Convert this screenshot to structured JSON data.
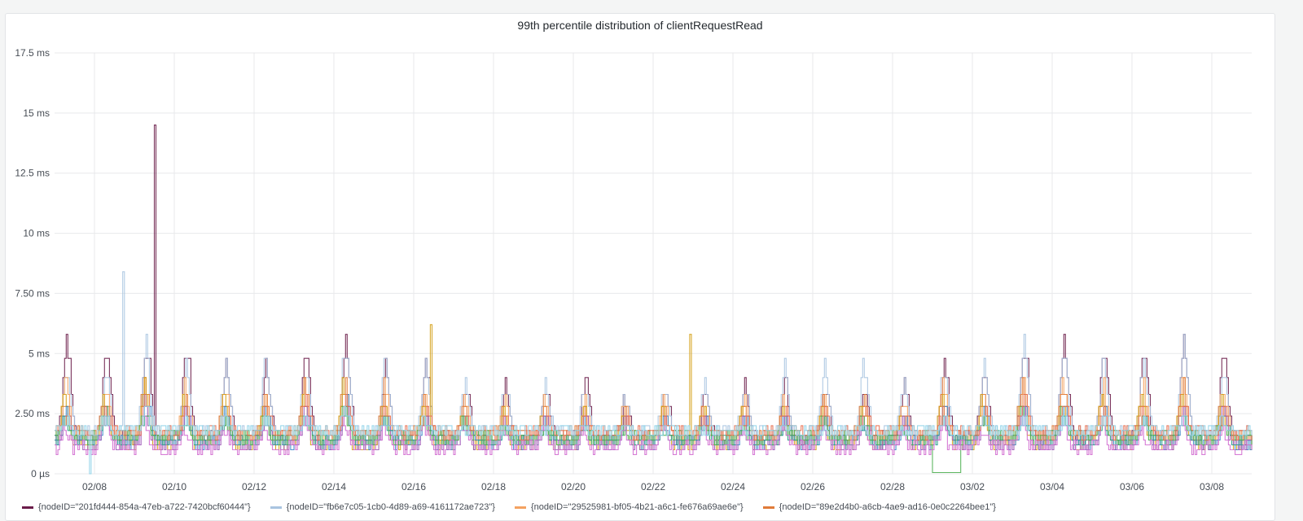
{
  "panel": {
    "title": "99th percentile distribution of clientRequestRead"
  },
  "chart_data": {
    "type": "line",
    "title": "99th percentile distribution of clientRequestRead",
    "xlabel": "",
    "ylabel": "",
    "x_range": [
      "02/07",
      "03/09"
    ],
    "x_ticks": [
      "02/08",
      "02/10",
      "02/12",
      "02/14",
      "02/16",
      "02/18",
      "02/20",
      "02/22",
      "02/24",
      "02/26",
      "02/28",
      "03/02",
      "03/04",
      "03/06",
      "03/08"
    ],
    "y_unit": "ms",
    "ylim": [
      0,
      17.5
    ],
    "y_ticks": [
      {
        "value": 0,
        "label": "0 µs"
      },
      {
        "value": 2.5,
        "label": "2.50 ms"
      },
      {
        "value": 5,
        "label": "5 ms"
      },
      {
        "value": 7.5,
        "label": "7.50 ms"
      },
      {
        "value": 10,
        "label": "10 ms"
      },
      {
        "value": 12.5,
        "label": "12.5 ms"
      },
      {
        "value": 15,
        "label": "15 ms"
      },
      {
        "value": 17.5,
        "label": "17.5 ms"
      }
    ],
    "grid": true,
    "legend_position": "bottom",
    "series": [
      {
        "color": "#6b1d4a",
        "base": 1.6,
        "peaks": [
          5.8,
          5.8,
          5.8,
          5.8,
          4.8,
          4.8,
          5.8,
          5.8,
          4.8,
          4.8,
          4.0,
          4.0,
          4.0,
          4.0,
          3.3,
          4.0,
          4.0,
          4.0,
          4.0,
          4.0,
          4.0,
          4.0,
          4.8,
          4.8,
          5.8,
          5.8,
          5.8,
          5.8,
          5.8,
          5.8
        ]
      },
      {
        "color": "#a9c4e0",
        "base": 1.8,
        "peaks": [
          4.8,
          4.8,
          5.8,
          4.8,
          4.8,
          4.8,
          4.8,
          5.8,
          4.8,
          4.8,
          4.0,
          4.0,
          4.0,
          4.0,
          3.3,
          4.0,
          4.0,
          4.0,
          4.8,
          4.8,
          4.8,
          4.0,
          4.8,
          4.8,
          5.8,
          5.8,
          4.8,
          4.8,
          5.8,
          4.8
        ]
      },
      {
        "color": "#f4a261",
        "base": 1.5,
        "peaks": [
          4.0,
          4.0,
          4.0,
          4.0,
          4.0,
          3.3,
          4.0,
          4.0,
          4.0,
          3.3,
          3.3,
          3.3,
          3.3,
          3.3,
          3.3,
          3.3,
          3.3,
          3.3,
          3.3,
          3.3,
          3.3,
          3.3,
          4.0,
          3.3,
          4.0,
          4.0,
          4.0,
          4.0,
          4.0,
          4.0
        ]
      },
      {
        "color": "#e07b39",
        "base": 1.7,
        "peaks": [
          3.3,
          3.3,
          4.0,
          3.3,
          3.3,
          3.3,
          4.0,
          4.0,
          3.3,
          3.3,
          2.8,
          2.8,
          2.8,
          2.8,
          2.8,
          2.8,
          2.8,
          2.8,
          2.8,
          3.3,
          3.3,
          2.8,
          3.3,
          3.3,
          4.0,
          4.0,
          3.3,
          3.3,
          4.0,
          3.3
        ]
      },
      {
        "color": "#d4a017",
        "base": 1.3,
        "peaks": [
          3.3,
          3.3,
          4.0,
          3.3,
          3.3,
          3.3,
          3.3,
          4.0,
          3.3,
          3.3,
          2.8,
          2.8,
          2.8,
          2.8,
          2.8,
          2.8,
          2.8,
          2.8,
          2.8,
          2.8,
          2.8,
          2.8,
          3.3,
          3.3,
          3.3,
          3.3,
          3.3,
          3.3,
          3.3,
          3.3
        ]
      },
      {
        "color": "#3a86c8",
        "base": 1.4,
        "peaks": [
          2.8,
          2.8,
          3.3,
          2.8,
          2.8,
          2.8,
          2.8,
          3.3,
          2.8,
          2.8,
          2.4,
          2.4,
          2.4,
          2.4,
          2.4,
          2.4,
          2.4,
          2.4,
          2.4,
          2.4,
          2.4,
          2.4,
          2.8,
          2.8,
          2.8,
          2.8,
          2.8,
          2.8,
          2.8,
          2.8
        ]
      },
      {
        "color": "#9b59b6",
        "base": 1.3,
        "peaks": [
          2.8,
          2.8,
          2.8,
          2.8,
          2.4,
          2.4,
          2.8,
          2.8,
          2.4,
          2.4,
          2.4,
          2.4,
          2.4,
          2.4,
          2.4,
          2.4,
          2.4,
          2.4,
          2.4,
          2.4,
          2.4,
          2.4,
          2.4,
          2.4,
          2.8,
          2.8,
          2.8,
          2.4,
          2.8,
          2.8
        ]
      },
      {
        "color": "#2a9d8f",
        "base": 1.5,
        "peaks": [
          2.4,
          2.4,
          2.8,
          2.4,
          2.4,
          2.4,
          2.4,
          2.8,
          2.4,
          2.4,
          2.0,
          2.0,
          2.0,
          2.0,
          2.0,
          2.0,
          2.0,
          2.0,
          2.0,
          2.0,
          2.0,
          2.0,
          2.4,
          2.4,
          2.4,
          2.4,
          2.4,
          2.4,
          2.4,
          2.4
        ]
      },
      {
        "color": "#4caf50",
        "base": 1.6,
        "peaks": [
          2.4,
          2.8,
          2.8,
          2.4,
          2.4,
          2.4,
          2.8,
          2.8,
          2.4,
          2.4,
          2.4,
          2.0,
          2.0,
          2.0,
          2.0,
          2.0,
          2.0,
          2.0,
          2.0,
          2.4,
          2.4,
          2.0,
          2.4,
          2.4,
          2.8,
          2.8,
          2.4,
          2.4,
          2.8,
          2.4
        ]
      },
      {
        "color": "#d36fd1",
        "base": 1.2,
        "peaks": [
          2.0,
          2.4,
          2.4,
          2.0,
          2.0,
          2.0,
          2.4,
          2.4,
          2.0,
          2.0,
          2.0,
          2.0,
          2.0,
          2.0,
          2.0,
          2.0,
          2.0,
          2.0,
          2.0,
          2.0,
          2.0,
          2.0,
          2.0,
          2.0,
          2.4,
          2.4,
          2.0,
          2.0,
          2.4,
          2.0
        ]
      },
      {
        "color": "#e76f51",
        "base": 1.8,
        "peaks": [
          2.8,
          2.8,
          3.3,
          2.8,
          2.8,
          2.8,
          3.3,
          3.3,
          2.8,
          2.8,
          2.4,
          2.4,
          2.4,
          2.4,
          2.4,
          2.4,
          2.4,
          2.4,
          2.8,
          2.8,
          2.8,
          2.4,
          2.8,
          2.8,
          3.3,
          3.3,
          2.8,
          2.8,
          3.3,
          2.8
        ]
      },
      {
        "color": "#8fd3e8",
        "base": 1.9,
        "peaks": [
          2.4,
          2.4,
          2.8,
          2.4,
          2.4,
          2.4,
          2.4,
          2.8,
          2.4,
          2.4,
          2.0,
          2.0,
          2.0,
          2.0,
          2.0,
          2.0,
          2.0,
          2.0,
          2.0,
          2.0,
          2.0,
          2.0,
          2.4,
          2.4,
          2.4,
          2.4,
          2.4,
          2.4,
          2.4,
          2.4
        ]
      }
    ],
    "spikes": [
      {
        "series": 0,
        "x_day": 2.5,
        "value": 14.5
      },
      {
        "series": 1,
        "x_day": 1.7,
        "value": 8.4
      },
      {
        "series": 4,
        "x_day": 9.4,
        "value": 6.2
      },
      {
        "series": 4,
        "x_day": 15.9,
        "value": 5.8
      }
    ],
    "dropouts": [
      {
        "series": 8,
        "x_from": 22.0,
        "x_to": 22.7,
        "value": 0.05
      },
      {
        "series": 11,
        "x_from": 0.85,
        "x_to": 0.9,
        "value": 0
      }
    ],
    "legend_entries": [
      "{nodeID=\"201fd444-854a-47eb-a722-7420bcf60444\"}",
      "{nodeID=\"fb6e7c05-1cb0-4d89-a69-4161172ae723\"}",
      "{nodeID=\"29525981-bf05-4b21-a6c1-fe676a69ae6e\"}",
      "{nodeID=\"89e2d4b0-a6cb-4ae9-ad16-0e0c2264bee1\"}"
    ]
  }
}
